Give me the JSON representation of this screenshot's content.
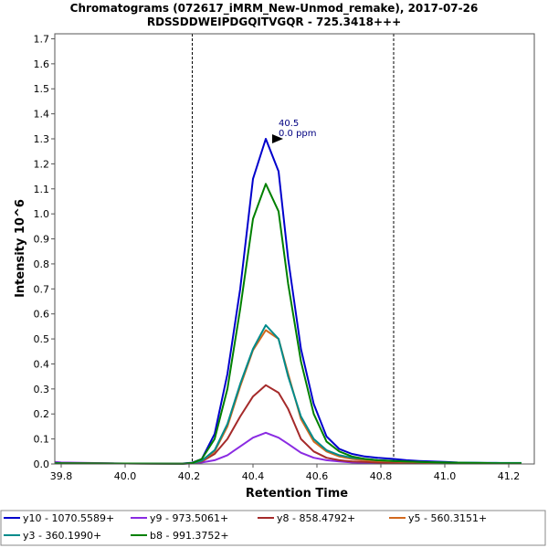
{
  "chart_data": {
    "type": "line",
    "title": "Chromatograms (072617_iMRM_New-Unmod_remake), 2017-07-26",
    "subtitle": "RDSSDDWEIPDGQITVGQR - 725.3418+++",
    "xlabel": "Retention Time",
    "ylabel": "Intensity 10^6",
    "xlim": [
      39.78,
      41.28
    ],
    "ylim": [
      0,
      1.72
    ],
    "x_ticks": [
      "39.8",
      "40.0",
      "40.2",
      "40.4",
      "40.6",
      "40.8",
      "41.0",
      "41.2"
    ],
    "x_tick_values": [
      39.8,
      40.0,
      40.2,
      40.4,
      40.6,
      40.8,
      41.0,
      41.2
    ],
    "y_ticks": [
      "0.0",
      "0.1",
      "0.2",
      "0.3",
      "0.4",
      "0.5",
      "0.6",
      "0.7",
      "0.8",
      "0.9",
      "1.0",
      "1.1",
      "1.2",
      "1.3",
      "1.4",
      "1.5",
      "1.6",
      "1.7"
    ],
    "y_tick_values": [
      0,
      0.1,
      0.2,
      0.3,
      0.4,
      0.5,
      0.6,
      0.7,
      0.8,
      0.9,
      1.0,
      1.1,
      1.2,
      1.3,
      1.4,
      1.5,
      1.6,
      1.7
    ],
    "boundaries": [
      40.21,
      40.84
    ],
    "peak_annotation": {
      "rt_label": "40.5",
      "ppm_label": "0.0 ppm",
      "x": 40.5,
      "y": 1.3
    },
    "series": [
      {
        "name": "y10 - 1070.5589+",
        "color": "#0000cc",
        "x": [
          39.78,
          39.8,
          40.0,
          40.18,
          40.21,
          40.24,
          40.28,
          40.32,
          40.36,
          40.4,
          40.44,
          40.48,
          40.51,
          40.55,
          40.59,
          40.63,
          40.67,
          40.71,
          40.75,
          40.79,
          40.84,
          40.88,
          40.92,
          40.96,
          41.0,
          41.04,
          41.08,
          41.12,
          41.16,
          41.2,
          41.24
        ],
        "y": [
          0.003,
          0.003,
          0.002,
          0.002,
          0.005,
          0.02,
          0.12,
          0.36,
          0.7,
          1.14,
          1.3,
          1.17,
          0.82,
          0.46,
          0.24,
          0.11,
          0.06,
          0.04,
          0.03,
          0.025,
          0.02,
          0.015,
          0.012,
          0.01,
          0.008,
          0.006,
          0.005,
          0.004,
          0.004,
          0.003,
          0.003
        ]
      },
      {
        "name": "y9 - 973.5061+",
        "color": "#8a2be2",
        "x": [
          39.78,
          39.8,
          40.0,
          40.18,
          40.21,
          40.24,
          40.28,
          40.32,
          40.36,
          40.4,
          40.44,
          40.48,
          40.51,
          40.55,
          40.59,
          40.63,
          40.67,
          40.71,
          40.75,
          40.79,
          40.84,
          40.88,
          40.92,
          40.96,
          41.0,
          41.04,
          41.08,
          41.12,
          41.16,
          41.2,
          41.24
        ],
        "y": [
          0.008,
          0.006,
          0.002,
          0.001,
          0.002,
          0.006,
          0.015,
          0.035,
          0.07,
          0.105,
          0.125,
          0.105,
          0.08,
          0.045,
          0.025,
          0.015,
          0.01,
          0.006,
          0.005,
          0.004,
          0.003,
          0.003,
          0.002,
          0.002,
          0.002,
          0.002,
          0.002,
          0.002,
          0.002,
          0.002,
          0.002
        ]
      },
      {
        "name": "y8 - 858.4792+",
        "color": "#a52a2a",
        "x": [
          39.78,
          39.8,
          40.0,
          40.18,
          40.21,
          40.24,
          40.28,
          40.32,
          40.36,
          40.4,
          40.44,
          40.48,
          40.51,
          40.55,
          40.59,
          40.63,
          40.67,
          40.71,
          40.75,
          40.79,
          40.84,
          40.88,
          40.92,
          40.96,
          41.0,
          41.04,
          41.08,
          41.12,
          41.16,
          41.2,
          41.24
        ],
        "y": [
          0.004,
          0.003,
          0.002,
          0.001,
          0.003,
          0.01,
          0.04,
          0.1,
          0.19,
          0.27,
          0.315,
          0.285,
          0.22,
          0.1,
          0.05,
          0.025,
          0.015,
          0.01,
          0.008,
          0.006,
          0.005,
          0.004,
          0.003,
          0.003,
          0.003,
          0.002,
          0.002,
          0.002,
          0.002,
          0.002,
          0.002
        ]
      },
      {
        "name": "y5 - 560.3151+",
        "color": "#d2691e",
        "x": [
          39.78,
          39.8,
          40.0,
          40.18,
          40.21,
          40.24,
          40.28,
          40.32,
          40.36,
          40.4,
          40.44,
          40.48,
          40.51,
          40.55,
          40.59,
          40.63,
          40.67,
          40.71,
          40.75,
          40.79,
          40.84,
          40.88,
          40.92,
          40.96,
          41.0,
          41.04,
          41.08,
          41.12,
          41.16,
          41.2,
          41.24
        ],
        "y": [
          0.004,
          0.003,
          0.002,
          0.001,
          0.003,
          0.012,
          0.05,
          0.15,
          0.31,
          0.455,
          0.535,
          0.5,
          0.36,
          0.18,
          0.09,
          0.05,
          0.03,
          0.02,
          0.015,
          0.012,
          0.01,
          0.008,
          0.007,
          0.006,
          0.005,
          0.004,
          0.004,
          0.003,
          0.003,
          0.003,
          0.003
        ]
      },
      {
        "name": "y3 - 360.1990+",
        "color": "#008b8b",
        "x": [
          39.78,
          39.8,
          40.0,
          40.18,
          40.21,
          40.24,
          40.28,
          40.32,
          40.36,
          40.4,
          40.44,
          40.48,
          40.51,
          40.55,
          40.59,
          40.63,
          40.67,
          40.71,
          40.75,
          40.79,
          40.84,
          40.88,
          40.92,
          40.96,
          41.0,
          41.04,
          41.08,
          41.12,
          41.16,
          41.2,
          41.24
        ],
        "y": [
          0.004,
          0.003,
          0.002,
          0.001,
          0.003,
          0.013,
          0.055,
          0.16,
          0.32,
          0.46,
          0.555,
          0.5,
          0.35,
          0.19,
          0.1,
          0.055,
          0.035,
          0.025,
          0.02,
          0.015,
          0.012,
          0.01,
          0.008,
          0.007,
          0.006,
          0.005,
          0.005,
          0.004,
          0.004,
          0.004,
          0.004
        ]
      },
      {
        "name": "b8 - 991.3752+",
        "color": "#008000",
        "x": [
          39.78,
          39.8,
          40.0,
          40.18,
          40.21,
          40.24,
          40.28,
          40.32,
          40.36,
          40.4,
          40.44,
          40.48,
          40.51,
          40.55,
          40.59,
          40.63,
          40.67,
          40.71,
          40.75,
          40.79,
          40.84,
          40.88,
          40.92,
          40.96,
          41.0,
          41.04,
          41.08,
          41.12,
          41.16,
          41.2,
          41.24
        ],
        "y": [
          0.003,
          0.003,
          0.002,
          0.001,
          0.004,
          0.02,
          0.1,
          0.3,
          0.62,
          0.98,
          1.12,
          1.01,
          0.72,
          0.41,
          0.2,
          0.09,
          0.05,
          0.03,
          0.02,
          0.015,
          0.012,
          0.01,
          0.008,
          0.007,
          0.006,
          0.005,
          0.004,
          0.004,
          0.003,
          0.003,
          0.003
        ]
      }
    ]
  }
}
